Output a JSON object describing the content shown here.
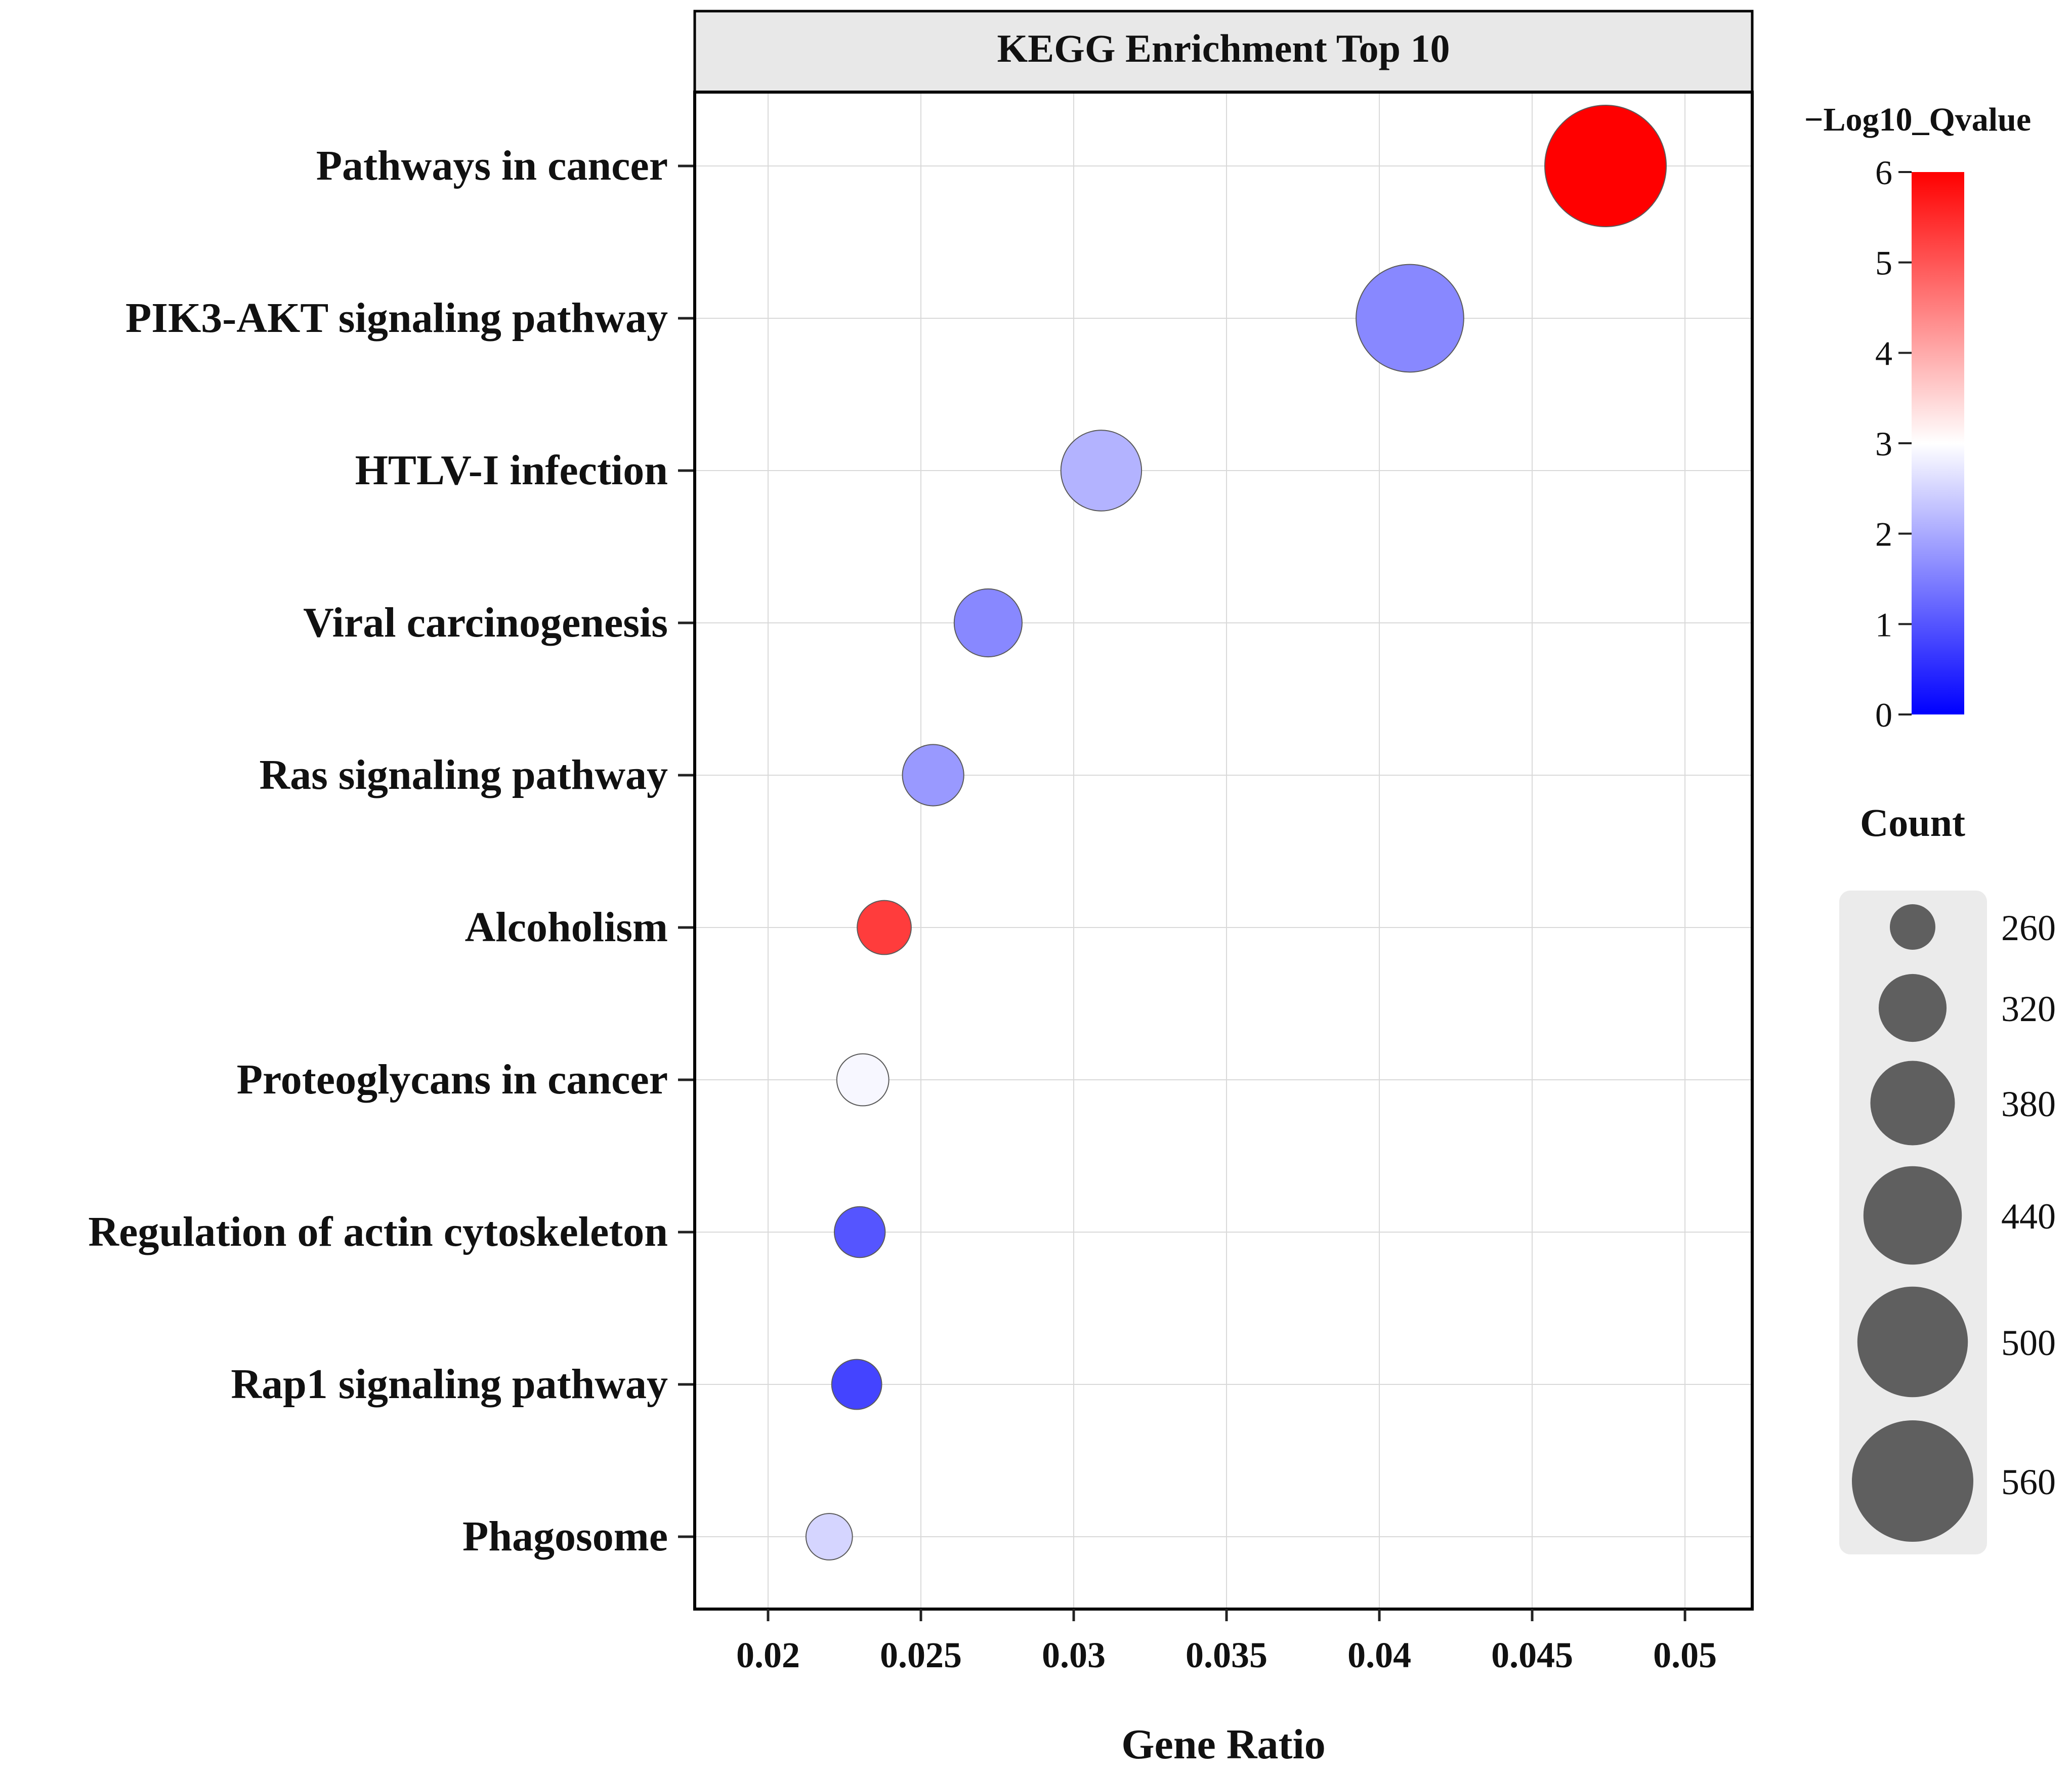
{
  "chart_data": {
    "type": "scatter",
    "title": "KEGG Enrichment Top 10",
    "xlabel": "Gene Ratio",
    "ylabel": "",
    "xlim": [
      0.0176,
      0.0522
    ],
    "xticks": [
      0.02,
      0.025,
      0.03,
      0.035,
      0.04,
      0.045,
      0.05
    ],
    "xtick_labels": [
      "0.02",
      "0.025",
      "0.03",
      "0.035",
      "0.04",
      "0.045",
      "0.05"
    ],
    "grid": true,
    "categories": [
      "Pathways in cancer",
      "PIK3-AKT signaling pathway",
      "HTLV-I infection",
      "Viral carcinogenesis",
      "Ras signaling pathway",
      "Alcoholism",
      "Proteoglycans in cancer",
      "Regulation of actin cytoskeleton",
      "Rap1 signaling pathway",
      "Phagosome"
    ],
    "points": [
      {
        "pathway": "Pathways in cancer",
        "gene_ratio": 0.0474,
        "neg_log10_q": 6.0,
        "count": 560
      },
      {
        "pathway": "PIK3-AKT signaling pathway",
        "gene_ratio": 0.041,
        "neg_log10_q": 1.6,
        "count": 485
      },
      {
        "pathway": "HTLV-I infection",
        "gene_ratio": 0.0309,
        "neg_log10_q": 2.1,
        "count": 365
      },
      {
        "pathway": "Viral carcinogenesis",
        "gene_ratio": 0.0272,
        "neg_log10_q": 1.6,
        "count": 320
      },
      {
        "pathway": "Ras signaling pathway",
        "gene_ratio": 0.0254,
        "neg_log10_q": 1.8,
        "count": 300
      },
      {
        "pathway": "Alcoholism",
        "gene_ratio": 0.0238,
        "neg_log10_q": 5.3,
        "count": 280
      },
      {
        "pathway": "Proteoglycans in cancer",
        "gene_ratio": 0.0231,
        "neg_log10_q": 2.9,
        "count": 275
      },
      {
        "pathway": "Regulation of actin cytoskeleton",
        "gene_ratio": 0.023,
        "neg_log10_q": 1.0,
        "count": 272
      },
      {
        "pathway": "Rap1 signaling pathway",
        "gene_ratio": 0.0229,
        "neg_log10_q": 0.8,
        "count": 270
      },
      {
        "pathway": "Phagosome",
        "gene_ratio": 0.022,
        "neg_log10_q": 2.5,
        "count": 262
      }
    ],
    "color_legend": {
      "title": "−Log10_Qvalue",
      "min": 0,
      "max": 6,
      "mid": 3,
      "ticks": [
        0,
        1,
        2,
        3,
        4,
        5,
        6
      ],
      "tick_labels": [
        "0",
        "1",
        "2",
        "3",
        "4",
        "5",
        "6"
      ],
      "low_color": "#0000ff",
      "mid_color": "#ffffff",
      "high_color": "#ff0000"
    },
    "size_legend": {
      "title": "Count",
      "values": [
        260,
        320,
        380,
        440,
        500,
        560
      ],
      "labels": [
        "260",
        "320",
        "380",
        "440",
        "500",
        "560"
      ]
    },
    "legend_placement": "right"
  }
}
